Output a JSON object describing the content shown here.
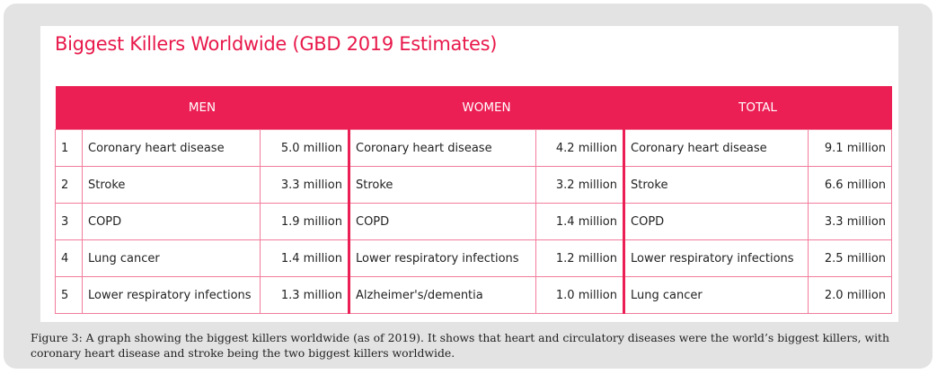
{
  "title": "Biggest Killers Worldwide (GBD 2019 Estimates)",
  "colors": {
    "accent": "#ec1f55",
    "title": "#e8194b",
    "grid": "#f27c9c",
    "frame": "#e3e3e3"
  },
  "headers": {
    "men": "MEN",
    "women": "WOMEN",
    "total": "TOTAL"
  },
  "rows": [
    {
      "rank": "1",
      "men_cause": "Coronary heart disease",
      "men_value": "5.0 million",
      "women_cause": "Coronary heart disease",
      "women_value": "4.2 million",
      "total_cause": "Coronary heart disease",
      "total_value": "9.1 million"
    },
    {
      "rank": "2",
      "men_cause": "Stroke",
      "men_value": "3.3 million",
      "women_cause": "Stroke",
      "women_value": "3.2 million",
      "total_cause": "Stroke",
      "total_value": "6.6 million"
    },
    {
      "rank": "3",
      "men_cause": "COPD",
      "men_value": "1.9 million",
      "women_cause": "COPD",
      "women_value": "1.4 million",
      "total_cause": "COPD",
      "total_value": "3.3 million"
    },
    {
      "rank": "4",
      "men_cause": "Lung cancer",
      "men_value": "1.4 million",
      "women_cause": "Lower respiratory infections",
      "women_value": "1.2 million",
      "total_cause": "Lower respiratory infections",
      "total_value": "2.5 million"
    },
    {
      "rank": "5",
      "men_cause": "Lower respiratory infections",
      "men_value": "1.3 million",
      "women_cause": "Alzheimer's/dementia",
      "women_value": "1.0 million",
      "total_cause": "Lung cancer",
      "total_value": "2.0 million"
    }
  ],
  "caption": {
    "label": "Figure 3",
    "text": ": A graph showing the biggest killers worldwide (as of 2019). It shows that heart and circulatory diseases were the world’s biggest killers, with coronary heart disease and stroke being the two biggest killers worldwide."
  }
}
